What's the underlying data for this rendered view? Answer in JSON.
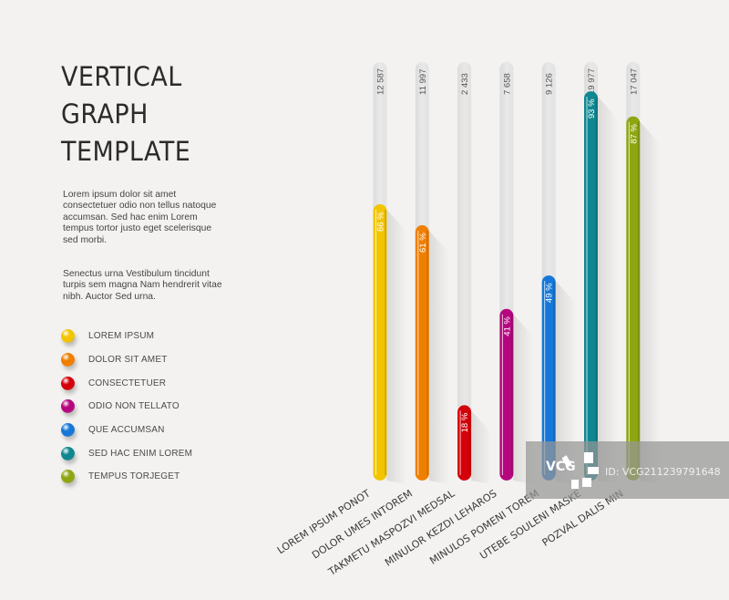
{
  "header": {
    "title_lines": [
      "VERTICAL",
      "GRAPH",
      "TEMPLATE"
    ]
  },
  "description": {
    "paragraph1": "Lorem ipsum dolor sit amet consectetuer odio non tellus natoque accumsan. Sed hac enim Lorem tempus tortor justo eget scelerisque sed morbi.",
    "paragraph2": "Senectus urna Vestibulum tincidunt turpis sem magna Nam hendrerit vitae nibh. Auctor Sed urna."
  },
  "legend": [
    {
      "label": "LOREM IPSUM",
      "color": "#f2c500"
    },
    {
      "label": "DOLOR SIT AMET",
      "color": "#f07f00"
    },
    {
      "label": "CONSECTETUER",
      "color": "#d4000b"
    },
    {
      "label": "ODIO NON TELLATO",
      "color": "#b5067f"
    },
    {
      "label": "QUE ACCUMSAN",
      "color": "#1677d8"
    },
    {
      "label": "SED HAC ENIM LOREM",
      "color": "#0f8791"
    },
    {
      "label": "TEMPUS TORJEGET",
      "color": "#8fa613"
    }
  ],
  "chart_data": {
    "type": "bar",
    "orientation": "vertical",
    "title": "VERTICAL GRAPH TEMPLATE",
    "categories": [
      "LOREM IPSUM PONOT",
      "DOLOR UMES INTOREM",
      "TAKMETU MASPOZVI MEDSAL",
      "MINULOR KEZDI LEHAROS",
      "MINULOS POMENI TOREM",
      "UTEBE SOULENI MASKE",
      "POZVAL DALIS MIN"
    ],
    "values_percent": [
      66,
      61,
      18,
      41,
      49,
      93,
      87
    ],
    "percent_labels": [
      "66 %",
      "61 %",
      "18 %",
      "41 %",
      "49 %",
      "93 %",
      "87 %"
    ],
    "totals": [
      "12 587",
      "11 997",
      "2 433",
      "7 658",
      "9 126",
      "19 977",
      "17 047"
    ],
    "colors": [
      "#f2c500",
      "#f07f00",
      "#d4000b",
      "#b5067f",
      "#1677d8",
      "#0f8791",
      "#8fa613"
    ],
    "ylim": [
      0,
      100
    ],
    "xlabel": "",
    "ylabel": "",
    "grid": false,
    "legend_position": "left"
  },
  "watermark": {
    "logo": "VCG",
    "id_text": "ID: VCG211239791648"
  }
}
